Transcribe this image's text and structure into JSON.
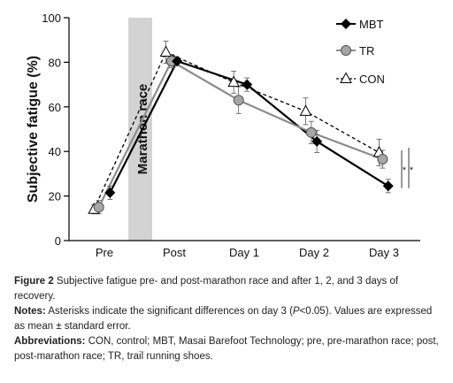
{
  "chart_data": {
    "type": "line",
    "ylabel": "Subjective fatigue (%)",
    "xlabel": "",
    "ylim": [
      0,
      100
    ],
    "yticks": [
      0,
      20,
      40,
      60,
      80,
      100
    ],
    "categories": [
      "Pre",
      "Post",
      "Day 1",
      "Day 2",
      "Day 3"
    ],
    "annotation": "Marathon race",
    "significance": "*",
    "legend_position": "top-right",
    "series": [
      {
        "name": "MBT",
        "marker": "diamond",
        "line": "solid",
        "color": "#000000",
        "x": [
          0,
          1,
          2,
          3,
          4
        ],
        "x_offset": [
          0.08,
          0.04,
          0.04,
          0.04,
          0.06
        ],
        "values": [
          21.5,
          80.5,
          70,
          44.5,
          24.5
        ],
        "error": [
          3,
          2,
          3,
          5,
          3
        ]
      },
      {
        "name": "TR",
        "marker": "circle",
        "line": "solid",
        "color": "#8c8c8c",
        "x": [
          0,
          1,
          2,
          3,
          4
        ],
        "x_offset": [
          -0.08,
          -0.04,
          -0.08,
          -0.04,
          -0.02
        ],
        "values": [
          15,
          80.5,
          63,
          48.5,
          36.5
        ],
        "error": [
          3,
          3,
          6,
          5,
          4
        ]
      },
      {
        "name": "CON",
        "marker": "triangle",
        "line": "dashed",
        "color": "#000000",
        "x": [
          0,
          1,
          2,
          3,
          4
        ],
        "x_offset": [
          -0.15,
          -0.12,
          -0.15,
          -0.12,
          -0.07
        ],
        "values": [
          14,
          84.5,
          71,
          58,
          39.5
        ],
        "error": [
          2,
          5,
          5,
          6,
          6
        ]
      }
    ]
  },
  "caption": {
    "figure_label": "Figure 2",
    "figure_text": " Subjective fatigue pre- and post-marathon race and after 1, 2, and 3 days of recovery.",
    "notes_label": "Notes:",
    "notes_text_1": " Asterisks indicate the significant differences on day 3 (",
    "notes_p": "P",
    "notes_text_2": "<0.05). Values are expressed as mean ± standard error.",
    "abbrev_label": "Abbreviations:",
    "abbrev_text": " CON, control; MBT, Masai Barefoot Technology; pre, pre-marathon race; post, post-marathon race; TR, trail running shoes."
  }
}
